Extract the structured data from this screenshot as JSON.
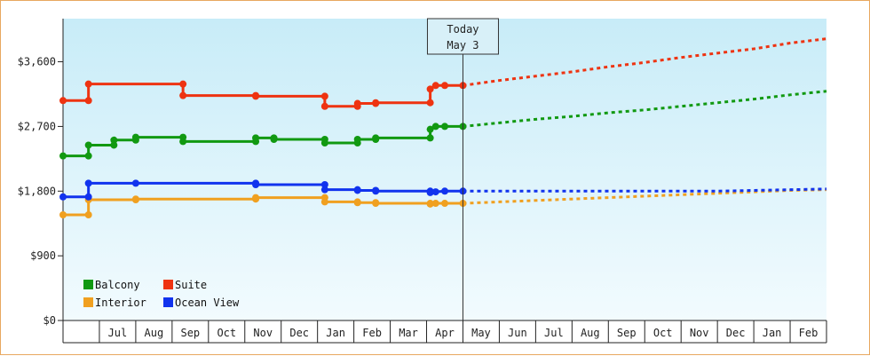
{
  "chart_data": {
    "type": "line",
    "y_ticks": [
      "$0",
      "$900",
      "$1,800",
      "$2,700",
      "$3,600"
    ],
    "y_tick_values": [
      0,
      900,
      1800,
      2700,
      3600
    ],
    "ylim": [
      0,
      4200
    ],
    "x_ticks": [
      "Jul",
      "Aug",
      "Sep",
      "Oct",
      "Nov",
      "Dec",
      "Jan",
      "Feb",
      "Mar",
      "Apr",
      "May",
      "Jun",
      "Jul",
      "Aug",
      "Sep",
      "Oct",
      "Nov",
      "Dec",
      "Jan",
      "Feb"
    ],
    "today_label_line1": "Today",
    "today_label_line2": "May 3",
    "today_x": 11.0,
    "grid": false,
    "legend_position": "bottom-left",
    "series": [
      {
        "name": "Balcony",
        "color": "#119911",
        "actual": [
          [
            0,
            2290
          ],
          [
            0.7,
            2290
          ],
          [
            0.7,
            2440
          ],
          [
            1.4,
            2440
          ],
          [
            1.4,
            2510
          ],
          [
            2.0,
            2510
          ],
          [
            2.0,
            2550
          ],
          [
            3.3,
            2550
          ],
          [
            3.3,
            2490
          ],
          [
            5.3,
            2490
          ],
          [
            5.3,
            2540
          ],
          [
            5.8,
            2540
          ],
          [
            5.8,
            2520
          ],
          [
            7.2,
            2520
          ],
          [
            7.2,
            2470
          ],
          [
            8.1,
            2470
          ],
          [
            8.1,
            2520
          ],
          [
            8.6,
            2520
          ],
          [
            8.6,
            2540
          ],
          [
            10.1,
            2540
          ],
          [
            10.1,
            2660
          ],
          [
            10.25,
            2700
          ],
          [
            10.5,
            2700
          ],
          [
            11.0,
            2700
          ]
        ],
        "forecast": [
          [
            11.0,
            2700
          ],
          [
            12,
            2750
          ],
          [
            13,
            2800
          ],
          [
            14,
            2840
          ],
          [
            15,
            2890
          ],
          [
            16,
            2930
          ],
          [
            17,
            2980
          ],
          [
            18,
            3030
          ],
          [
            19,
            3080
          ],
          [
            20,
            3140
          ],
          [
            21,
            3190
          ]
        ]
      },
      {
        "name": "Suite",
        "color": "#ee3311",
        "actual": [
          [
            0,
            3060
          ],
          [
            0.7,
            3060
          ],
          [
            0.7,
            3290
          ],
          [
            3.3,
            3290
          ],
          [
            3.3,
            3130
          ],
          [
            5.3,
            3130
          ],
          [
            5.3,
            3120
          ],
          [
            7.2,
            3120
          ],
          [
            7.2,
            2980
          ],
          [
            8.1,
            2980
          ],
          [
            8.1,
            3020
          ],
          [
            8.6,
            3020
          ],
          [
            8.6,
            3030
          ],
          [
            10.1,
            3030
          ],
          [
            10.1,
            3220
          ],
          [
            10.25,
            3270
          ],
          [
            10.5,
            3270
          ],
          [
            11.0,
            3270
          ]
        ],
        "forecast": [
          [
            11.0,
            3270
          ],
          [
            12,
            3340
          ],
          [
            13,
            3400
          ],
          [
            14,
            3460
          ],
          [
            15,
            3530
          ],
          [
            16,
            3590
          ],
          [
            17,
            3660
          ],
          [
            18,
            3720
          ],
          [
            19,
            3780
          ],
          [
            20,
            3860
          ],
          [
            21,
            3920
          ]
        ]
      },
      {
        "name": "Interior",
        "color": "#f0a020",
        "actual": [
          [
            0,
            1470
          ],
          [
            0.7,
            1470
          ],
          [
            0.7,
            1680
          ],
          [
            2.0,
            1680
          ],
          [
            2.0,
            1690
          ],
          [
            5.3,
            1690
          ],
          [
            5.3,
            1710
          ],
          [
            7.2,
            1710
          ],
          [
            7.2,
            1650
          ],
          [
            8.1,
            1650
          ],
          [
            8.1,
            1640
          ],
          [
            8.6,
            1640
          ],
          [
            8.6,
            1630
          ],
          [
            10.1,
            1630
          ],
          [
            10.1,
            1620
          ],
          [
            10.25,
            1630
          ],
          [
            10.5,
            1630
          ],
          [
            11.0,
            1630
          ]
        ],
        "forecast": [
          [
            11.0,
            1630
          ],
          [
            12,
            1650
          ],
          [
            13,
            1670
          ],
          [
            14,
            1690
          ],
          [
            15,
            1710
          ],
          [
            16,
            1730
          ],
          [
            17,
            1750
          ],
          [
            18,
            1770
          ],
          [
            19,
            1790
          ],
          [
            20,
            1810
          ],
          [
            21,
            1820
          ]
        ]
      },
      {
        "name": "Ocean View",
        "color": "#1133ee",
        "actual": [
          [
            0,
            1720
          ],
          [
            0.7,
            1720
          ],
          [
            0.7,
            1910
          ],
          [
            2.0,
            1910
          ],
          [
            2.0,
            1910
          ],
          [
            5.3,
            1910
          ],
          [
            5.3,
            1890
          ],
          [
            7.2,
            1890
          ],
          [
            7.2,
            1820
          ],
          [
            8.1,
            1820
          ],
          [
            8.1,
            1810
          ],
          [
            8.6,
            1810
          ],
          [
            8.6,
            1800
          ],
          [
            10.1,
            1800
          ],
          [
            10.1,
            1780
          ],
          [
            10.25,
            1790
          ],
          [
            10.5,
            1800
          ],
          [
            11.0,
            1800
          ]
        ],
        "forecast": [
          [
            11.0,
            1800
          ],
          [
            12,
            1800
          ],
          [
            13,
            1800
          ],
          [
            14,
            1800
          ],
          [
            15,
            1800
          ],
          [
            16,
            1800
          ],
          [
            17,
            1800
          ],
          [
            18,
            1800
          ],
          [
            19,
            1810
          ],
          [
            20,
            1820
          ],
          [
            21,
            1830
          ]
        ]
      }
    ],
    "legend": [
      {
        "label": "Balcony",
        "color": "#119911"
      },
      {
        "label": "Suite",
        "color": "#ee3311"
      },
      {
        "label": "Interior",
        "color": "#f0a020"
      },
      {
        "label": "Ocean View",
        "color": "#1133ee"
      }
    ]
  }
}
